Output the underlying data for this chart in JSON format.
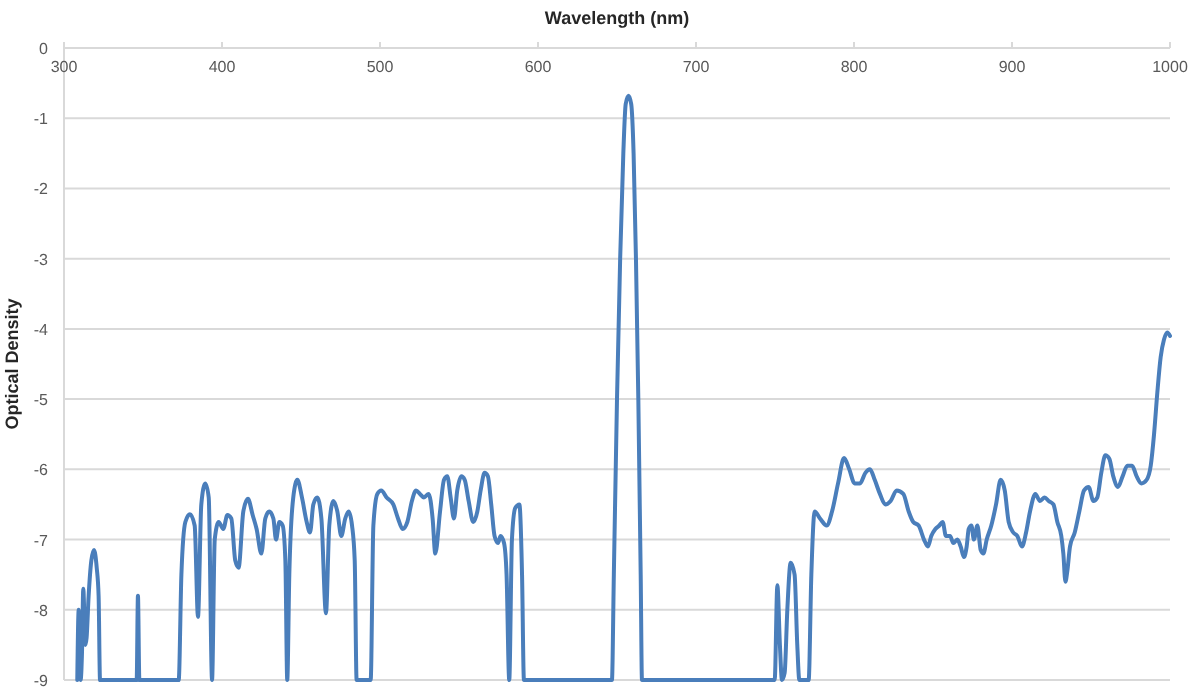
{
  "chart_data": {
    "type": "line",
    "xlabel": "Wavelength (nm)",
    "ylabel": "Optical Density",
    "xlim": [
      300,
      1000
    ],
    "xticks": [
      300,
      400,
      500,
      600,
      700,
      800,
      900,
      1000
    ],
    "ylim": [
      -9,
      0
    ],
    "yticks": [
      0,
      -1,
      -2,
      -3,
      -4,
      -5,
      -6,
      -7,
      -8,
      -9
    ],
    "grid": "y",
    "marker": "none",
    "line_style": "solid",
    "x": [
      308.4,
      309.3,
      310.5,
      311.4,
      312.2,
      313.5,
      314.3,
      315.6,
      317.3,
      319.0,
      320.7,
      321.9,
      322.8,
      346.0,
      346.8,
      347.7,
      372.6,
      374.3,
      376.8,
      379.7,
      382.7,
      384.8,
      386.9,
      389.4,
      391.6,
      393.7,
      395.4,
      397.9,
      400.8,
      403.4,
      405.9,
      408.4,
      410.5,
      413.5,
      416.4,
      419.4,
      421.9,
      424.9,
      427.4,
      429.9,
      432.5,
      434.2,
      436.3,
      438.4,
      440.1,
      441.3,
      442.6,
      445.1,
      447.7,
      450.6,
      453.6,
      455.7,
      457.8,
      460.3,
      462.9,
      465.8,
      467.9,
      470.5,
      473.0,
      475.5,
      478.0,
      480.2,
      482.3,
      484.0,
      485.2,
      494.1,
      495.8,
      498.3,
      500.8,
      504.2,
      508.4,
      511.4,
      514.3,
      517.3,
      520.2,
      522.8,
      525.3,
      527.8,
      530.8,
      533.3,
      535.0,
      538.0,
      540.5,
      542.6,
      544.7,
      546.8,
      548.9,
      551.5,
      553.6,
      556.1,
      559.0,
      561.6,
      563.7,
      566.2,
      568.3,
      570.4,
      572.5,
      574.7,
      576.3,
      578.5,
      580.1,
      581.8,
      583.5,
      585.6,
      588.2,
      589.9,
      591.1,
      646.8,
      648.0,
      650.0,
      652.0,
      654.0,
      655.5,
      657.3,
      659.0,
      660.5,
      662.0,
      663.5,
      665.0,
      665.8,
      749.8,
      751.5,
      753.1,
      754.4,
      756.1,
      757.8,
      759.9,
      762.4,
      764.1,
      765.4,
      771.3,
      773.0,
      775.1,
      778.5,
      782.7,
      786.1,
      789.9,
      793.7,
      797.0,
      800.4,
      803.8,
      807.2,
      810.1,
      813.1,
      816.4,
      819.8,
      823.2,
      827.0,
      831.2,
      834.6,
      837.5,
      840.9,
      844.3,
      846.8,
      848.9,
      851.5,
      854.0,
      856.1,
      858.2,
      860.8,
      862.9,
      865.4,
      867.5,
      869.6,
      871.3,
      872.6,
      874.3,
      875.9,
      878.1,
      880.2,
      881.9,
      884.0,
      886.9,
      889.9,
      892.8,
      895.4,
      897.9,
      900.8,
      903.4,
      906.3,
      908.9,
      911.4,
      914.8,
      917.7,
      920.7,
      923.2,
      926.2,
      928.7,
      931.2,
      932.5,
      933.8,
      935.0,
      936.7,
      939.7,
      942.6,
      945.6,
      948.5,
      951.5,
      954.0,
      956.5,
      959.1,
      961.6,
      964.1,
      967.1,
      970.0,
      973.0,
      976.0,
      978.9,
      981.9,
      985.2,
      987.8,
      989.9,
      992.0,
      994.1,
      996.2,
      998.3,
      1000
    ],
    "series": [
      {
        "color": "#4a7ebb",
        "values": [
          -9,
          -8,
          -9,
          -8.6,
          -7.7,
          -8.5,
          -8.4,
          -7.8,
          -7.3,
          -7.15,
          -7.4,
          -7.8,
          -9,
          -9,
          -7.8,
          -9,
          -9,
          -7.5,
          -6.75,
          -6.64,
          -6.8,
          -8.1,
          -6.5,
          -6.2,
          -6.4,
          -9,
          -7.0,
          -6.75,
          -6.85,
          -6.65,
          -6.7,
          -7.3,
          -7.4,
          -6.6,
          -6.42,
          -6.65,
          -6.85,
          -7.2,
          -6.7,
          -6.6,
          -6.7,
          -7.0,
          -6.75,
          -6.8,
          -7.3,
          -9,
          -7.5,
          -6.4,
          -6.15,
          -6.4,
          -6.75,
          -6.9,
          -6.5,
          -6.4,
          -6.7,
          -8.05,
          -6.8,
          -6.45,
          -6.6,
          -6.95,
          -6.7,
          -6.6,
          -6.8,
          -7.3,
          -9,
          -9,
          -6.8,
          -6.35,
          -6.3,
          -6.4,
          -6.5,
          -6.7,
          -6.85,
          -6.75,
          -6.45,
          -6.3,
          -6.35,
          -6.4,
          -6.35,
          -6.7,
          -7.2,
          -6.6,
          -6.15,
          -6.1,
          -6.4,
          -6.7,
          -6.3,
          -6.1,
          -6.15,
          -6.45,
          -6.75,
          -6.6,
          -6.3,
          -6.05,
          -6.1,
          -6.5,
          -6.95,
          -7.05,
          -6.95,
          -7.05,
          -7.5,
          -9,
          -7.0,
          -6.55,
          -6.5,
          -7.5,
          -9,
          -9,
          -7.5,
          -5.0,
          -3.0,
          -1.5,
          -0.8,
          -0.68,
          -0.8,
          -1.5,
          -3.0,
          -5.0,
          -7.5,
          -9,
          -9,
          -7.65,
          -8.5,
          -9,
          -8.9,
          -8.0,
          -7.33,
          -7.5,
          -8.5,
          -9,
          -9,
          -7.5,
          -6.6,
          -6.7,
          -6.8,
          -6.6,
          -6.2,
          -5.84,
          -6.0,
          -6.2,
          -6.2,
          -6.05,
          -6.0,
          -6.15,
          -6.35,
          -6.5,
          -6.45,
          -6.3,
          -6.35,
          -6.6,
          -6.75,
          -6.8,
          -7.0,
          -7.1,
          -6.95,
          -6.85,
          -6.8,
          -6.75,
          -6.95,
          -6.95,
          -7.05,
          -7.0,
          -7.1,
          -7.25,
          -7.1,
          -6.85,
          -6.8,
          -7.0,
          -6.8,
          -7.15,
          -7.2,
          -7.0,
          -6.8,
          -6.5,
          -6.15,
          -6.3,
          -6.75,
          -6.9,
          -6.95,
          -7.1,
          -6.9,
          -6.6,
          -6.35,
          -6.45,
          -6.4,
          -6.45,
          -6.5,
          -6.75,
          -6.95,
          -7.2,
          -7.6,
          -7.45,
          -7.1,
          -6.9,
          -6.6,
          -6.3,
          -6.25,
          -6.45,
          -6.4,
          -6.05,
          -5.8,
          -5.85,
          -6.1,
          -6.25,
          -6.1,
          -5.95,
          -5.95,
          -6.1,
          -6.2,
          -6.15,
          -5.95,
          -5.5,
          -4.9,
          -4.4,
          -4.15,
          -4.05,
          -4.1
        ]
      }
    ]
  }
}
